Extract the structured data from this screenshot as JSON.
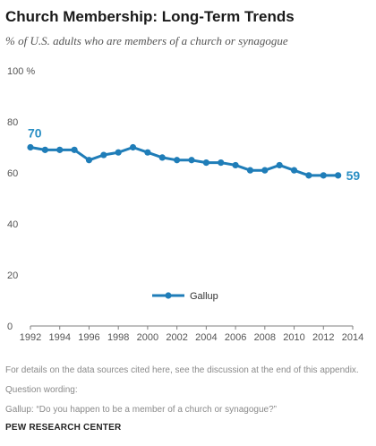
{
  "title": "Church Membership: Long-Term Trends",
  "subtitle": "% of U.S. adults who are members of a church or synagogue",
  "colors": {
    "series": "#1f7db8",
    "label": "#2a8fc4",
    "axis": "#7f7f7f",
    "tick_text": "#555555"
  },
  "chart_data": {
    "type": "line",
    "y_unit_label": "%",
    "ylim": [
      0,
      100
    ],
    "yticks": [
      0,
      20,
      40,
      60,
      80,
      100
    ],
    "xlim": [
      1992,
      2014
    ],
    "xticks": [
      1992,
      1994,
      1996,
      1998,
      2000,
      2002,
      2004,
      2006,
      2008,
      2010,
      2012,
      2014
    ],
    "grid": false,
    "legend": "bottom-center",
    "series": [
      {
        "name": "Gallup",
        "x": [
          1992,
          1993,
          1994,
          1995,
          1996,
          1997,
          1998,
          1999,
          2000,
          2001,
          2002,
          2003,
          2004,
          2005,
          2006,
          2007,
          2008,
          2009,
          2010,
          2011,
          2012,
          2013
        ],
        "y": [
          70,
          69,
          69,
          69,
          65,
          67,
          68,
          70,
          68,
          66,
          65,
          65,
          64,
          64,
          63,
          61,
          61,
          63,
          61,
          59,
          59,
          59
        ]
      }
    ],
    "annotations": [
      {
        "x": 1992,
        "y": 70,
        "text": "70"
      },
      {
        "x": 2013,
        "y": 59,
        "text": "59"
      }
    ]
  },
  "footer": {
    "sources_note": "For details on the data sources cited here, see the discussion at the end of this appendix.",
    "question_wording_label": "Question wording:",
    "question_text": "Gallup: “Do you happen to be a member of a church or synagogue?”",
    "brand": "PEW RESEARCH CENTER"
  }
}
